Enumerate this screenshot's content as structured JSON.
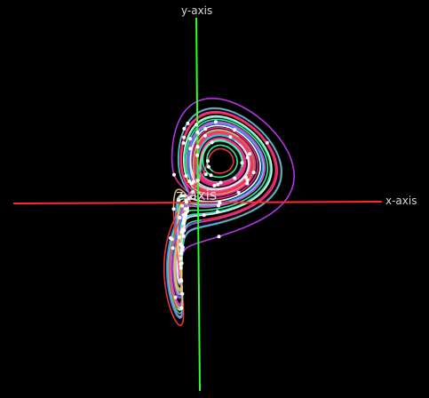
{
  "axes": {
    "x_label": "x-axis",
    "y_label": "y-axis",
    "z_label": "z-axis",
    "x_color": "#ff2a2a",
    "y_color": "#2cff2c"
  },
  "attractor": {
    "type": "lorenz",
    "sigma": 10,
    "rho": 28,
    "beta": 2.6667,
    "palette": [
      "#ff2aa8",
      "#c43cff",
      "#2a7bff",
      "#28e6c4",
      "#ffffff",
      "#e6c86e",
      "#ff3c3c",
      "#3cffb4"
    ],
    "marker_color": "#ffffff"
  }
}
